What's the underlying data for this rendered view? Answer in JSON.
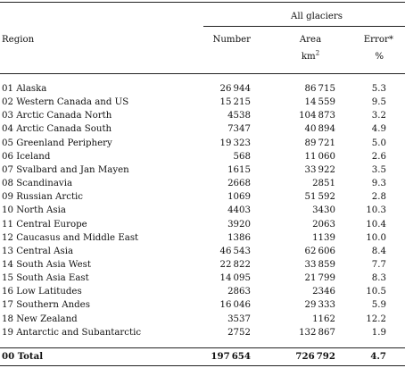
{
  "group_header": "All glaciers",
  "columns": {
    "region": "Region",
    "number": "Number",
    "area": "Area",
    "area_unit": "km",
    "area_unit_sup": "2",
    "error": "Error*",
    "error_unit": "%"
  },
  "rows": [
    {
      "region": "01 Alaska",
      "number": "26 944",
      "area": "86 715",
      "error": "5.3"
    },
    {
      "region": "02 Western Canada and US",
      "number": "15 215",
      "area": "14 559",
      "error": "9.5"
    },
    {
      "region": "03 Arctic Canada North",
      "number": "4538",
      "area": "104 873",
      "error": "3.2"
    },
    {
      "region": "04 Arctic Canada South",
      "number": "7347",
      "area": "40 894",
      "error": "4.9"
    },
    {
      "region": "05 Greenland Periphery",
      "number": "19 323",
      "area": "89 721",
      "error": "5.0"
    },
    {
      "region": "06 Iceland",
      "number": "568",
      "area": "11 060",
      "error": "2.6"
    },
    {
      "region": "07 Svalbard and Jan Mayen",
      "number": "1615",
      "area": "33 922",
      "error": "3.5"
    },
    {
      "region": "08 Scandinavia",
      "number": "2668",
      "area": "2851",
      "error": "9.3"
    },
    {
      "region": "09 Russian Arctic",
      "number": "1069",
      "area": "51 592",
      "error": "2.8"
    },
    {
      "region": "10 North Asia",
      "number": "4403",
      "area": "3430",
      "error": "10.3"
    },
    {
      "region": "11 Central Europe",
      "number": "3920",
      "area": "2063",
      "error": "10.4"
    },
    {
      "region": "12 Caucasus and Middle East",
      "number": "1386",
      "area": "1139",
      "error": "10.0"
    },
    {
      "region": "13 Central Asia",
      "number": "46 543",
      "area": "62 606",
      "error": "8.4"
    },
    {
      "region": "14 South Asia West",
      "number": "22 822",
      "area": "33 859",
      "error": "7.7"
    },
    {
      "region": "15 South Asia East",
      "number": "14 095",
      "area": "21 799",
      "error": "8.3"
    },
    {
      "region": "16 Low Latitudes",
      "number": "2863",
      "area": "2346",
      "error": "10.5"
    },
    {
      "region": "17 Southern Andes",
      "number": "16 046",
      "area": "29 333",
      "error": "5.9"
    },
    {
      "region": "18 New Zealand",
      "number": "3537",
      "area": "1162",
      "error": "12.2"
    },
    {
      "region": "19 Antarctic and Subantarctic",
      "number": "2752",
      "area": "132 867",
      "error": "1.9"
    }
  ],
  "total": {
    "region": "00 Total",
    "number": "197 654",
    "area": "726 792",
    "error": "4.7"
  }
}
